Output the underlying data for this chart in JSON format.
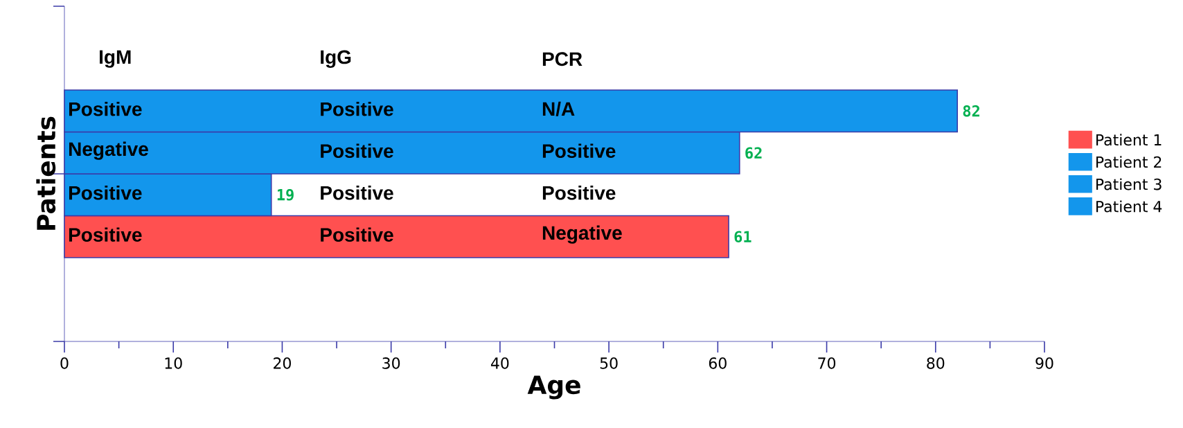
{
  "chart_data": {
    "type": "bar",
    "orientation": "horizontal",
    "xlabel": "Age",
    "ylabel": "Patients",
    "categories": [
      null,
      null,
      null,
      null,
      null,
      null,
      null,
      null
    ],
    "series": [
      {
        "name": "Patient 1",
        "color": "#ff5050",
        "values": [
          null,
          null,
          null,
          null,
          null,
          61,
          null,
          null
        ]
      },
      {
        "name": "Patient 2",
        "color": "#1396ec",
        "values": [
          null,
          null,
          null,
          null,
          19,
          null,
          null,
          null
        ]
      },
      {
        "name": "Patient 3",
        "color": "#1396ec",
        "values": [
          null,
          null,
          null,
          62,
          null,
          null,
          null,
          null
        ]
      },
      {
        "name": "Patient 4",
        "color": "#1396ec",
        "values": [
          null,
          null,
          82,
          null,
          null,
          null,
          null,
          null
        ]
      }
    ],
    "annotations": [
      "IgM",
      "IgG",
      "PCR",
      "Positive",
      "Positive",
      "N/A",
      "Negative",
      "Positive",
      "Positive",
      "Positive",
      "Positive",
      "Positive",
      "Positive",
      "Positive",
      "Negative"
    ],
    "xlim": [
      0,
      90
    ],
    "xticks": [
      0,
      {
        "value": 5,
        "label": null
      },
      10,
      {
        "value": 15,
        "label": null
      },
      20,
      {
        "value": 25,
        "label": null
      },
      30,
      {
        "value": 35,
        "label": null
      },
      40,
      {
        "value": 45,
        "label": null
      },
      50,
      {
        "value": 55,
        "label": null
      },
      60,
      {
        "value": 65,
        "label": null
      },
      70,
      {
        "value": 75,
        "label": null
      },
      80,
      {
        "value": 85,
        "label": null
      },
      90
    ],
    "data_labels": true,
    "legend": "right",
    "tick_labels": "x"
  }
}
